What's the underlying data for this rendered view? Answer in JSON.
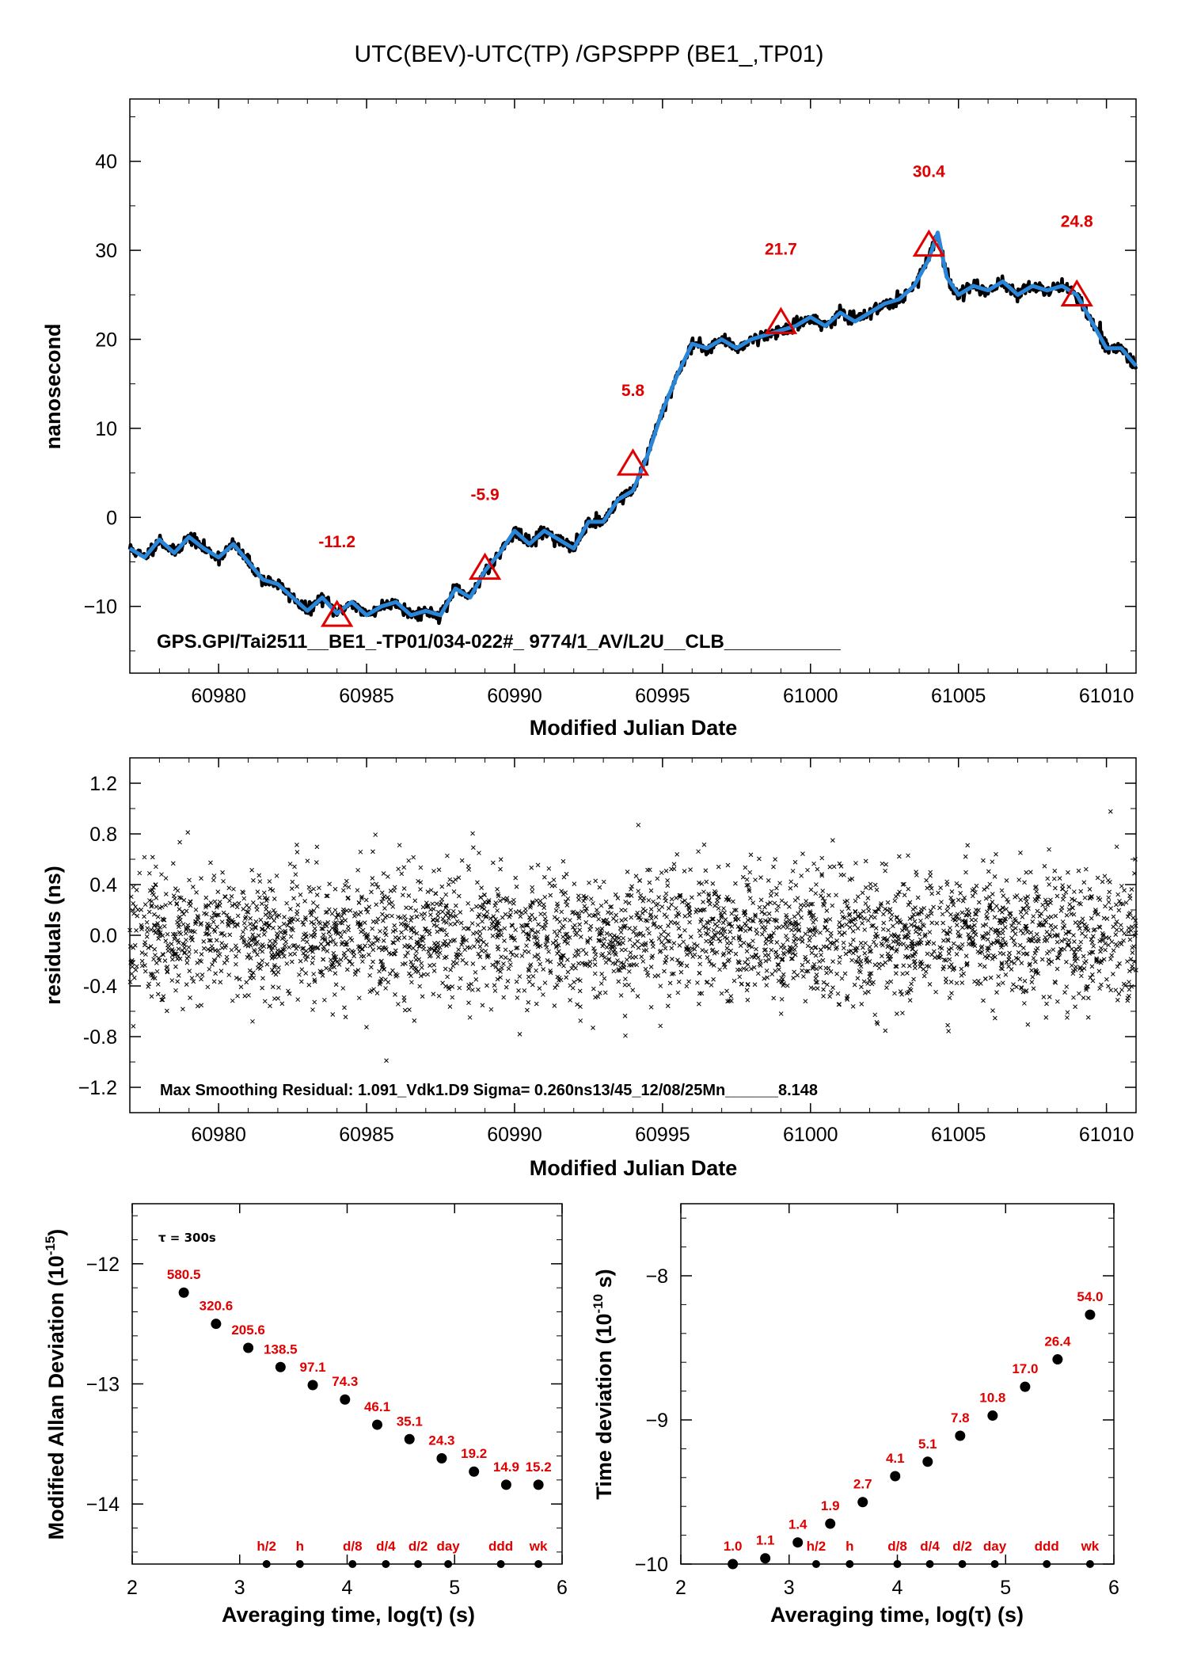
{
  "title": "UTC(BEV)-UTC(TP)  /GPSPPP  (BE1_,TP01)",
  "colors": {
    "series": "#2a86d8",
    "raw": "#000000",
    "annotation": "#e00000",
    "marker": "#e00000"
  },
  "chart_data": [
    {
      "id": "offset",
      "type": "line",
      "xlabel": "Modified Julian Date",
      "ylabel": "nanosecond",
      "xlim": [
        60977,
        61011
      ],
      "ylim": [
        -17.5,
        47
      ],
      "x_ticks": [
        60980,
        60985,
        60990,
        60995,
        61000,
        61005,
        61010
      ],
      "x_tick_labels": [
        "60980",
        "60985",
        "60990",
        "60995",
        "61000",
        "61005",
        "61010"
      ],
      "y_ticks": [
        -10,
        0,
        10,
        20,
        30,
        40
      ],
      "y_tick_labels": [
        "−10",
        "0",
        "10",
        "20",
        "30",
        "40"
      ],
      "series": [
        {
          "x": [
            60977,
            60977.5,
            60978,
            60978.5,
            60979,
            60979.5,
            60980,
            60980.5,
            60981,
            60981.5,
            60982,
            60982.5,
            60983,
            60983.5,
            60984,
            60984.5,
            60985,
            60985.5,
            60986,
            60986.5,
            60987,
            60987.5,
            60988,
            60988.5,
            60989,
            60989.5,
            60990,
            60990.5,
            60991,
            60991.5,
            60992,
            60992.5,
            60993,
            60993.5,
            60994,
            60994.5,
            60995,
            60995.5,
            60996,
            60996.5,
            60997,
            60997.5,
            60998,
            60998.5,
            60999,
            60999.5,
            61000,
            61000.5,
            61001,
            61001.5,
            61002,
            61002.5,
            61003,
            61003.5,
            61004,
            61004.3,
            61004.6,
            61005,
            61005.5,
            61006,
            61006.5,
            61007,
            61007.5,
            61008,
            61008.5,
            61009,
            61009.5,
            61010,
            61010.5,
            61011
          ],
          "y": [
            -3.5,
            -4.5,
            -2.5,
            -4,
            -2.2,
            -3.5,
            -4.5,
            -3,
            -5,
            -7,
            -7.5,
            -9,
            -10.5,
            -9,
            -10.8,
            -9.5,
            -11,
            -10,
            -9.5,
            -11,
            -10.5,
            -11,
            -8,
            -9,
            -6,
            -4,
            -1.5,
            -3,
            -1.5,
            -2.5,
            -3.5,
            -0.5,
            -0.5,
            2,
            3,
            7,
            12,
            16,
            19.5,
            19,
            20,
            19,
            20,
            20.5,
            21,
            21.5,
            22.5,
            21.5,
            23,
            22,
            23,
            24,
            24.5,
            26,
            29,
            32,
            27,
            25,
            26,
            25.5,
            26.5,
            25,
            26,
            25.5,
            26,
            25,
            22,
            19,
            19,
            17
          ]
        }
      ],
      "markers": [
        {
          "x": 60984,
          "y": -11.2,
          "label": "-11.2"
        },
        {
          "x": 60989,
          "y": -5.9,
          "label": "-5.9"
        },
        {
          "x": 60994,
          "y": 5.8,
          "label": "5.8"
        },
        {
          "x": 60999,
          "y": 21.7,
          "label": "21.7"
        },
        {
          "x": 61004,
          "y": 30.4,
          "label": "30.4"
        },
        {
          "x": 61009,
          "y": 24.8,
          "label": "24.8"
        }
      ],
      "annotation": "GPS.GPI/Tai2511__BE1_-TP01/034-022#_  9774/1_AV/L2U__CLB___________"
    },
    {
      "id": "residuals",
      "type": "scatter",
      "xlabel": "Modified Julian Date",
      "ylabel": "residuals (ns)",
      "xlim": [
        60977,
        61011
      ],
      "ylim": [
        -1.4,
        1.4
      ],
      "x_ticks": [
        60980,
        60985,
        60990,
        60995,
        61000,
        61005,
        61010
      ],
      "x_tick_labels": [
        "60980",
        "60985",
        "60990",
        "60995",
        "61000",
        "61005",
        "61010"
      ],
      "y_ticks": [
        -1.2,
        -0.8,
        -0.4,
        0.0,
        0.4,
        0.8,
        1.2
      ],
      "y_tick_labels": [
        "−1.2",
        "-0.8",
        "-0.4",
        "0.0",
        "0.4",
        "0.8",
        "1.2"
      ],
      "sigma": 0.26,
      "max_residual": 1.091,
      "annotation": "Max Smoothing Residual: 1.091_Vdk1.D9  Sigma= 0.260ns13/45_12/08/25Mn______8.148"
    },
    {
      "id": "mdev",
      "type": "scatter",
      "xlabel": "Averaging time, log(τ) (s)",
      "ylabel_main": "Modified Allan Deviation (10",
      "ylabel_exp": "-15",
      "ylabel_end": ")",
      "xlim": [
        2,
        6
      ],
      "ylim": [
        -14.5,
        -11.5
      ],
      "x_ticks": [
        2,
        3,
        4,
        5,
        6
      ],
      "x_tick_labels": [
        "2",
        "3",
        "4",
        "5",
        "6"
      ],
      "y_ticks": [
        -14,
        -13,
        -12
      ],
      "y_tick_labels": [
        "−14",
        "−13",
        "−12"
      ],
      "tau_note": "τ = 300s",
      "points": [
        {
          "x": 2.48,
          "y": -12.24,
          "label": "580.5"
        },
        {
          "x": 2.78,
          "y": -12.5,
          "label": "320.6"
        },
        {
          "x": 3.08,
          "y": -12.7,
          "label": "205.6"
        },
        {
          "x": 3.38,
          "y": -12.86,
          "label": "138.5"
        },
        {
          "x": 3.68,
          "y": -13.01,
          "label": "97.1"
        },
        {
          "x": 3.98,
          "y": -13.13,
          "label": "74.3"
        },
        {
          "x": 4.28,
          "y": -13.34,
          "label": "46.1"
        },
        {
          "x": 4.58,
          "y": -13.46,
          "label": "35.1"
        },
        {
          "x": 4.88,
          "y": -13.62,
          "label": "24.3"
        },
        {
          "x": 5.18,
          "y": -13.73,
          "label": "19.2"
        },
        {
          "x": 5.48,
          "y": -13.84,
          "label": "14.9"
        },
        {
          "x": 5.78,
          "y": -13.84,
          "label": "15.2"
        }
      ],
      "baseline_labels": [
        {
          "x": 3.25,
          "label": "h/2"
        },
        {
          "x": 3.56,
          "label": "h"
        },
        {
          "x": 4.05,
          "label": "d/8"
        },
        {
          "x": 4.36,
          "label": "d/4"
        },
        {
          "x": 4.66,
          "label": "d/2"
        },
        {
          "x": 4.94,
          "label": "day"
        },
        {
          "x": 5.43,
          "label": "ddd"
        },
        {
          "x": 5.78,
          "label": "wk"
        }
      ]
    },
    {
      "id": "tdev",
      "type": "scatter",
      "xlabel": "Averaging time, log(τ) (s)",
      "ylabel_main": "Time deviation (10",
      "ylabel_exp": "-10",
      "ylabel_end": " s)",
      "xlim": [
        2,
        6
      ],
      "ylim": [
        -10,
        -7.5
      ],
      "x_ticks": [
        2,
        3,
        4,
        5,
        6
      ],
      "x_tick_labels": [
        "2",
        "3",
        "4",
        "5",
        "6"
      ],
      "y_ticks": [
        -10,
        -9,
        -8
      ],
      "y_tick_labels": [
        "−10",
        "−9",
        "−8"
      ],
      "points": [
        {
          "x": 2.48,
          "y": -10.0,
          "label": "1.0"
        },
        {
          "x": 2.78,
          "y": -9.96,
          "label": "1.1"
        },
        {
          "x": 3.08,
          "y": -9.85,
          "label": "1.4"
        },
        {
          "x": 3.38,
          "y": -9.72,
          "label": "1.9"
        },
        {
          "x": 3.68,
          "y": -9.57,
          "label": "2.7"
        },
        {
          "x": 3.98,
          "y": -9.39,
          "label": "4.1"
        },
        {
          "x": 4.28,
          "y": -9.29,
          "label": "5.1"
        },
        {
          "x": 4.58,
          "y": -9.11,
          "label": "7.8"
        },
        {
          "x": 4.88,
          "y": -8.97,
          "label": "10.8"
        },
        {
          "x": 5.18,
          "y": -8.77,
          "label": "17.0"
        },
        {
          "x": 5.48,
          "y": -8.58,
          "label": "26.4"
        },
        {
          "x": 5.78,
          "y": -8.27,
          "label": "54.0"
        }
      ],
      "baseline_labels": [
        {
          "x": 3.25,
          "label": "h/2"
        },
        {
          "x": 3.56,
          "label": "h"
        },
        {
          "x": 4.0,
          "label": "d/8"
        },
        {
          "x": 4.3,
          "label": "d/4"
        },
        {
          "x": 4.6,
          "label": "d/2"
        },
        {
          "x": 4.9,
          "label": "day"
        },
        {
          "x": 5.38,
          "label": "ddd"
        },
        {
          "x": 5.78,
          "label": "wk"
        }
      ]
    }
  ]
}
